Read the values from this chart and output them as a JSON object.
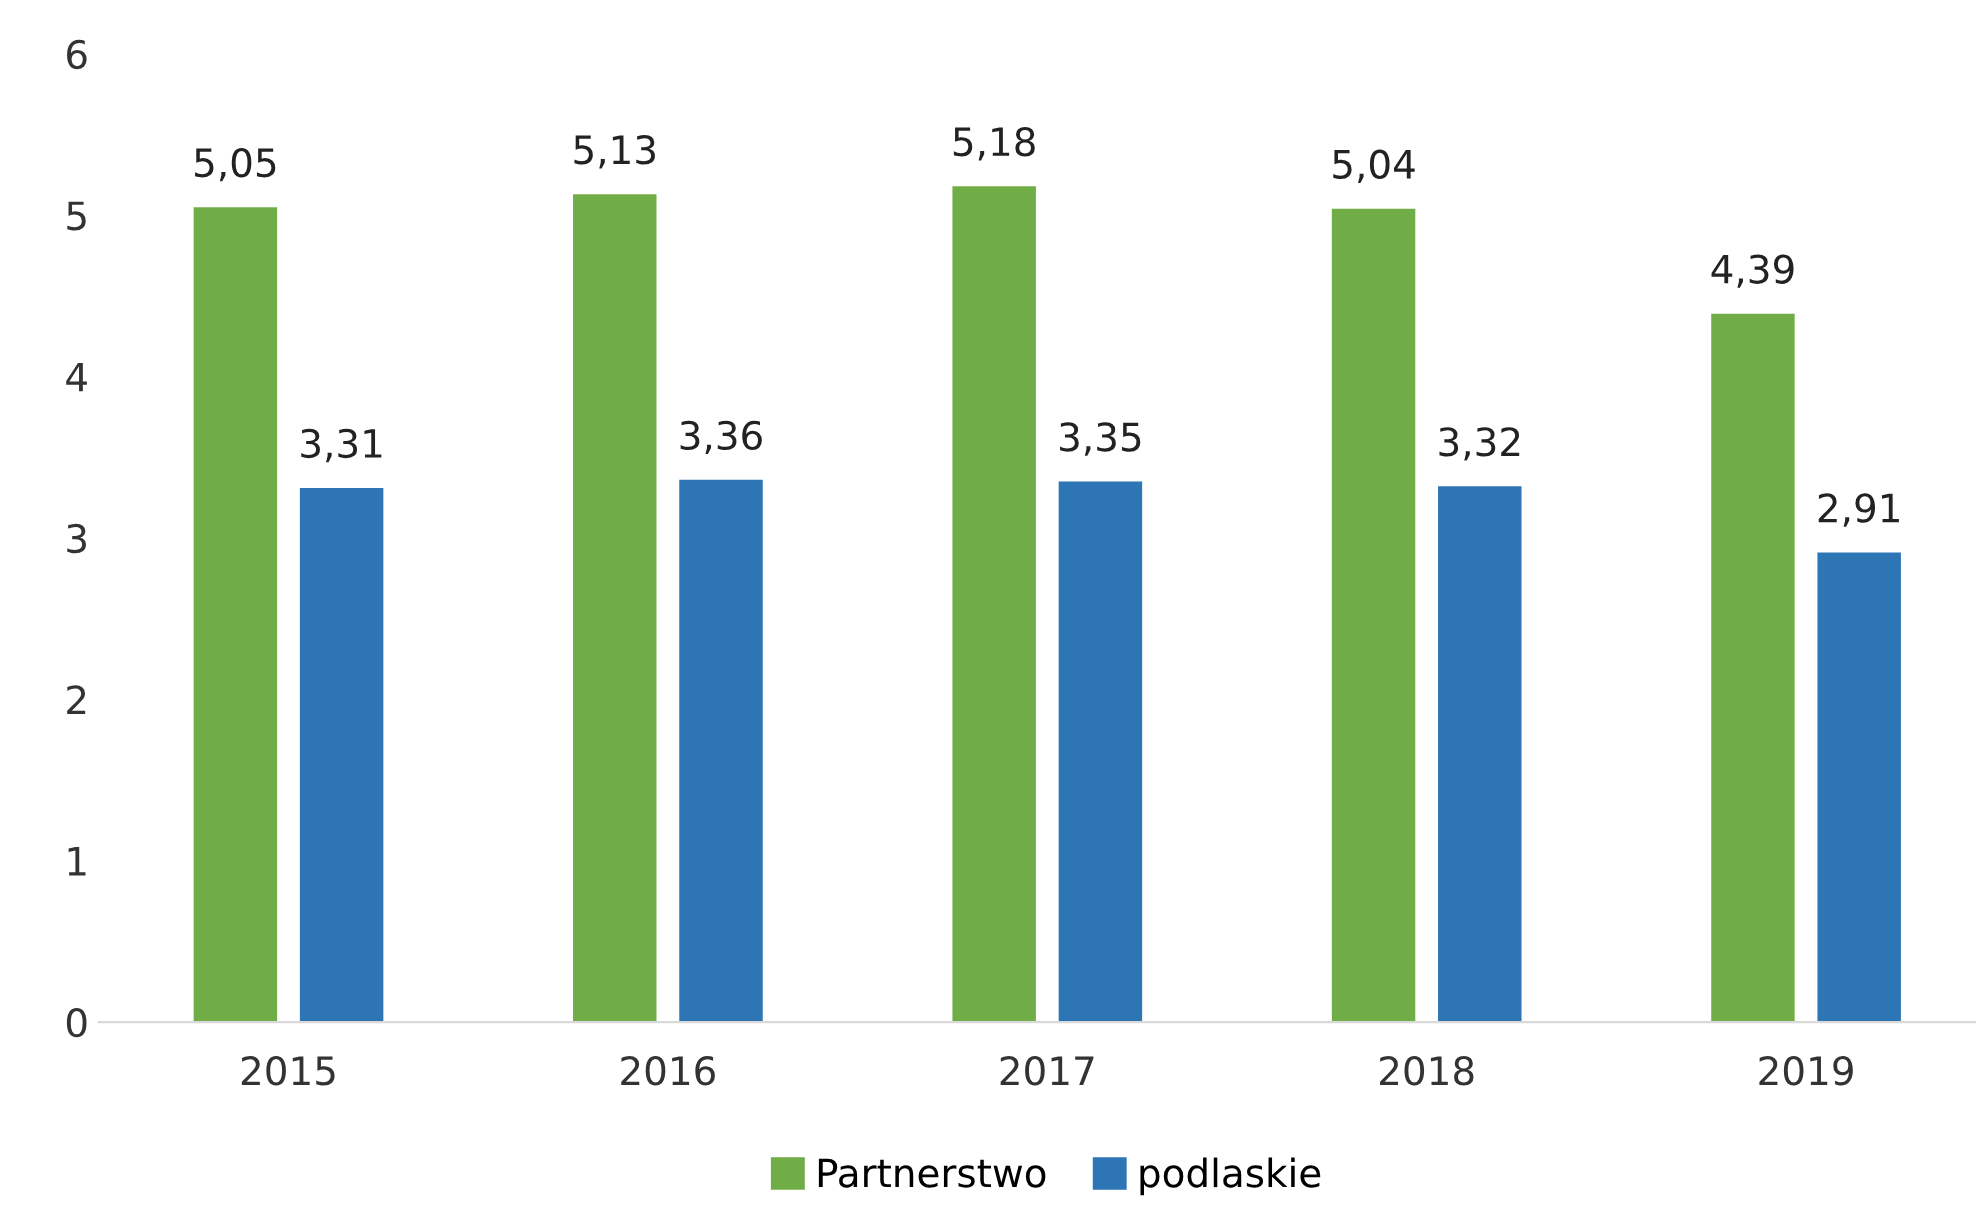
{
  "chart_data": {
    "type": "bar",
    "categories": [
      "2015",
      "2016",
      "2017",
      "2018",
      "2019"
    ],
    "series": [
      {
        "name": "Partnerstwo",
        "color": "#70ad47",
        "values": [
          5.05,
          5.13,
          5.18,
          5.04,
          4.39
        ],
        "value_labels": [
          "5,05",
          "5,13",
          "5,18",
          "5,04",
          "4,39"
        ]
      },
      {
        "name": "podlaskie",
        "color": "#2e75b6",
        "values": [
          3.31,
          3.36,
          3.35,
          3.32,
          2.91
        ],
        "value_labels": [
          "3,31",
          "3,36",
          "3,35",
          "3,32",
          "2,91"
        ]
      }
    ],
    "ylim": [
      0,
      6
    ],
    "yticks": [
      0,
      1,
      2,
      3,
      4,
      5,
      6
    ],
    "grid": false,
    "legend": "bottom"
  }
}
